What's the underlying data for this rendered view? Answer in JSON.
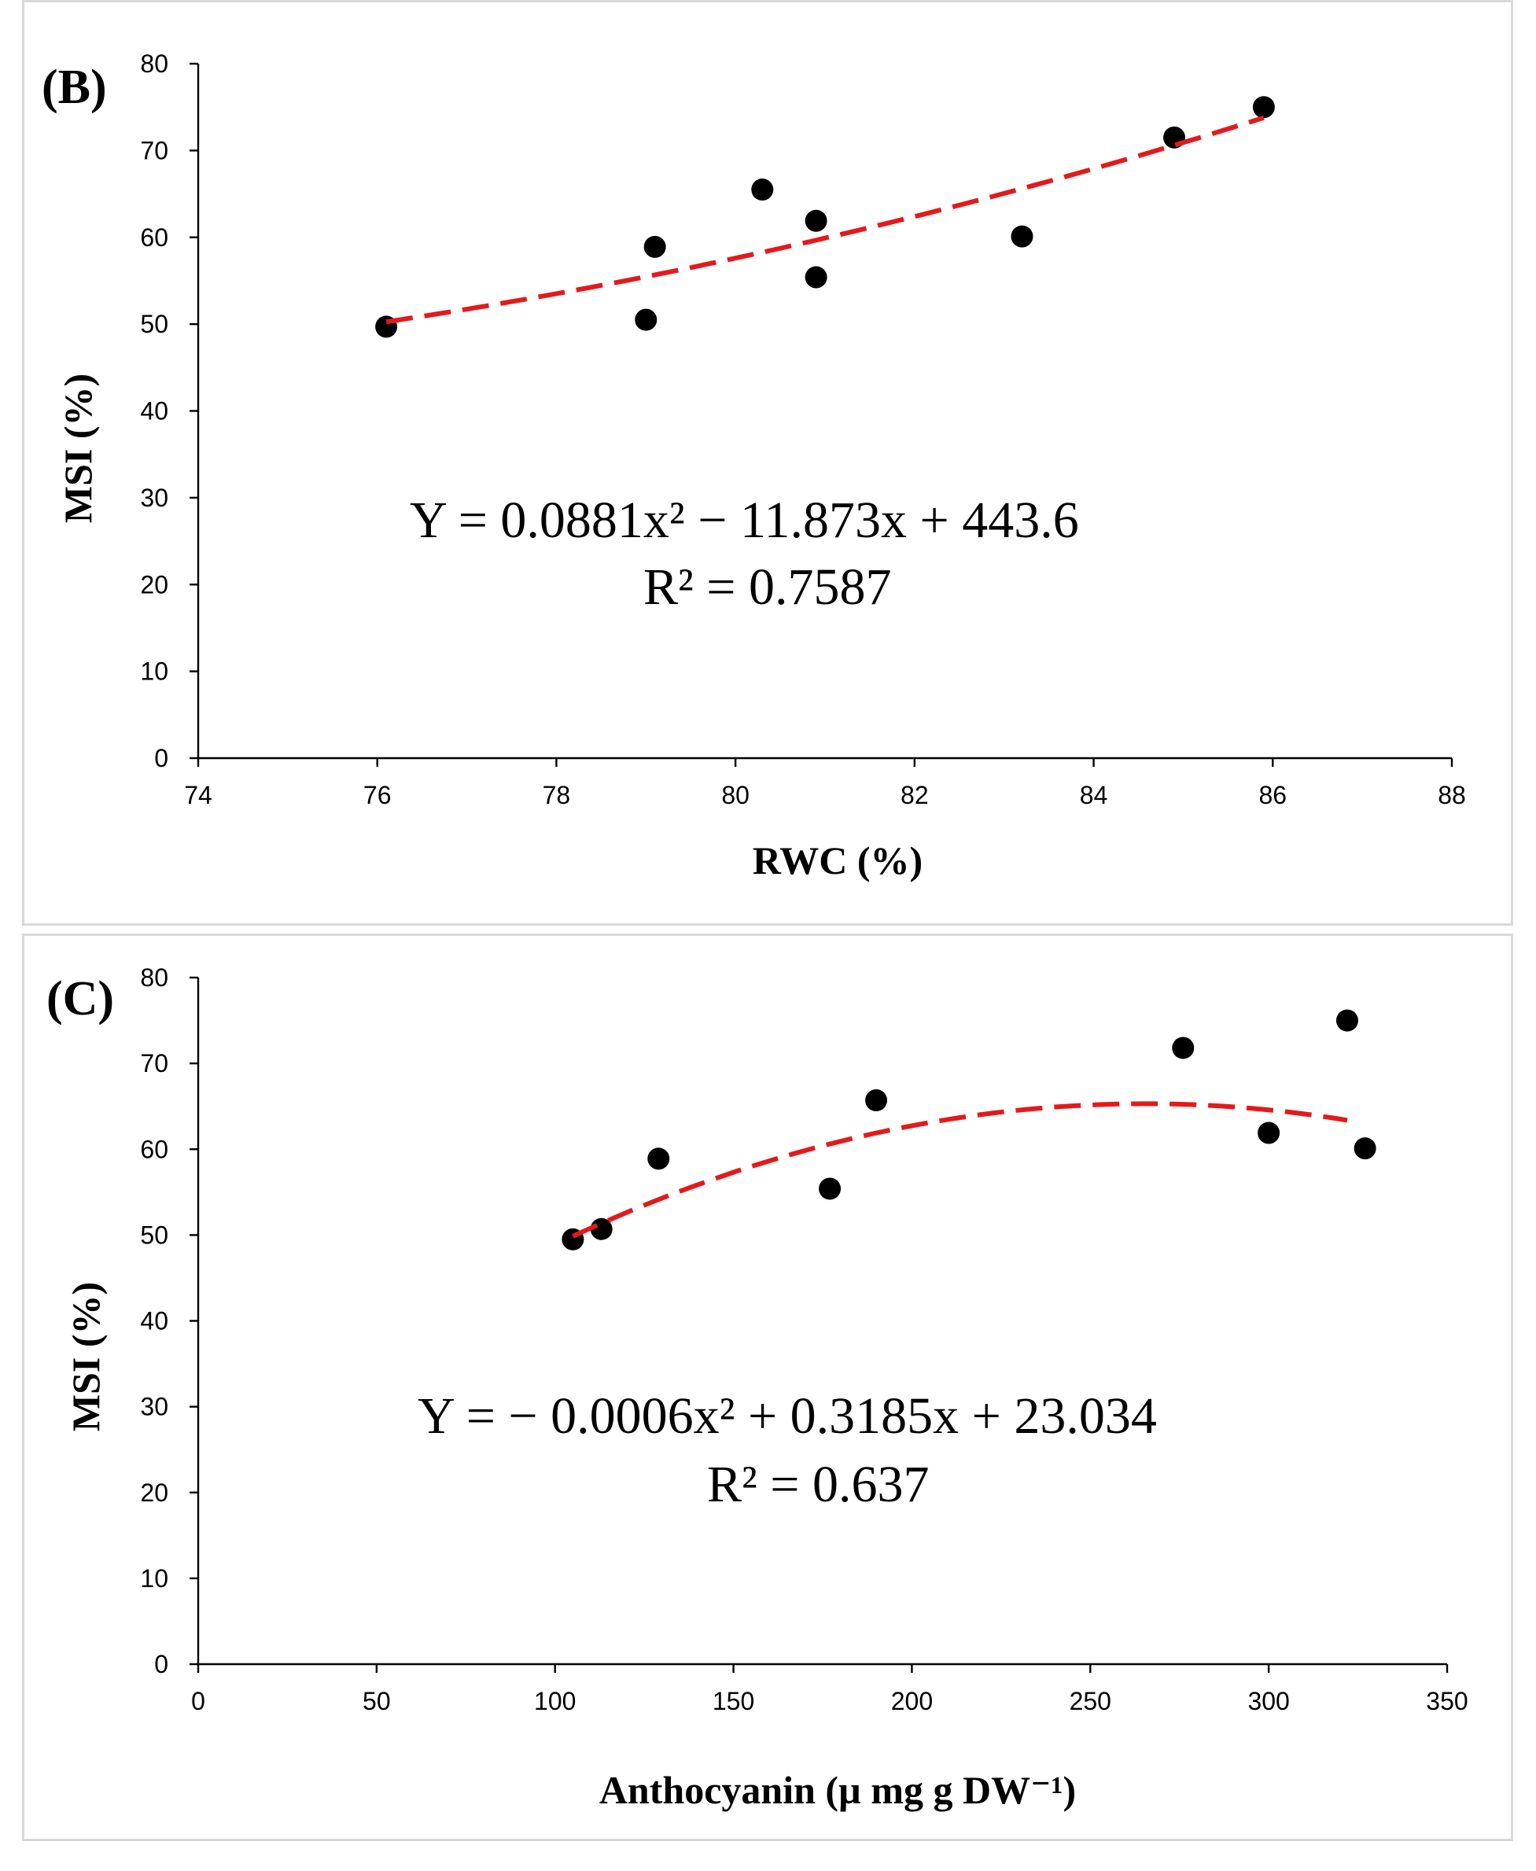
{
  "chart_data": [
    {
      "type": "scatter",
      "panel_label": "(B)",
      "xlabel": "RWC  (%)",
      "ylabel": "MSI (%)",
      "xlim": [
        74,
        88
      ],
      "ylim": [
        0,
        80
      ],
      "xticks": [
        74,
        76,
        78,
        80,
        82,
        84,
        86,
        88
      ],
      "yticks": [
        0,
        10,
        20,
        30,
        40,
        50,
        60,
        70,
        80
      ],
      "points": [
        {
          "x": 76.1,
          "y": 49.7
        },
        {
          "x": 79.0,
          "y": 50.5
        },
        {
          "x": 79.1,
          "y": 58.9
        },
        {
          "x": 80.3,
          "y": 65.5
        },
        {
          "x": 80.9,
          "y": 61.9
        },
        {
          "x": 80.9,
          "y": 55.4
        },
        {
          "x": 83.2,
          "y": 60.1
        },
        {
          "x": 84.9,
          "y": 71.5
        },
        {
          "x": 85.9,
          "y": 75.0
        }
      ],
      "trendline": {
        "type": "polynomial",
        "degree": 2,
        "x_range": [
          76.1,
          85.9
        ],
        "coefficients": {
          "a": 0.0881,
          "b": -11.873,
          "c": 443.6
        }
      },
      "equation": "Y = 0.0881x² − 11.873x  + 443.6",
      "r_squared": "R² = 0.7587",
      "marker_color": "#000000",
      "trend_color": "#e31a1c"
    },
    {
      "type": "scatter",
      "panel_label": "(C)",
      "xlabel": "Anthocyanin (µ mg g DW⁻¹)",
      "ylabel": "MSI (%)",
      "xlim": [
        0,
        350
      ],
      "ylim": [
        0,
        80
      ],
      "xticks": [
        0,
        50,
        100,
        150,
        200,
        250,
        300,
        350
      ],
      "yticks": [
        0,
        10,
        20,
        30,
        40,
        50,
        60,
        70,
        80
      ],
      "points": [
        {
          "x": 105,
          "y": 49.5
        },
        {
          "x": 113,
          "y": 50.7
        },
        {
          "x": 129,
          "y": 58.9
        },
        {
          "x": 177,
          "y": 55.4
        },
        {
          "x": 190,
          "y": 65.7
        },
        {
          "x": 276,
          "y": 71.8
        },
        {
          "x": 300,
          "y": 61.9
        },
        {
          "x": 322,
          "y": 75.0
        },
        {
          "x": 327,
          "y": 60.1
        }
      ],
      "trendline": {
        "type": "polynomial",
        "degree": 2,
        "x_range": [
          105,
          322
        ],
        "coefficients": {
          "a": -0.0006,
          "b": 0.3185,
          "c": 23.034
        }
      },
      "equation": "Y = − 0.0006x²  + 0.3185x  + 23.034",
      "r_squared": "R² = 0.637",
      "marker_color": "#000000",
      "trend_color": "#e31a1c"
    }
  ]
}
